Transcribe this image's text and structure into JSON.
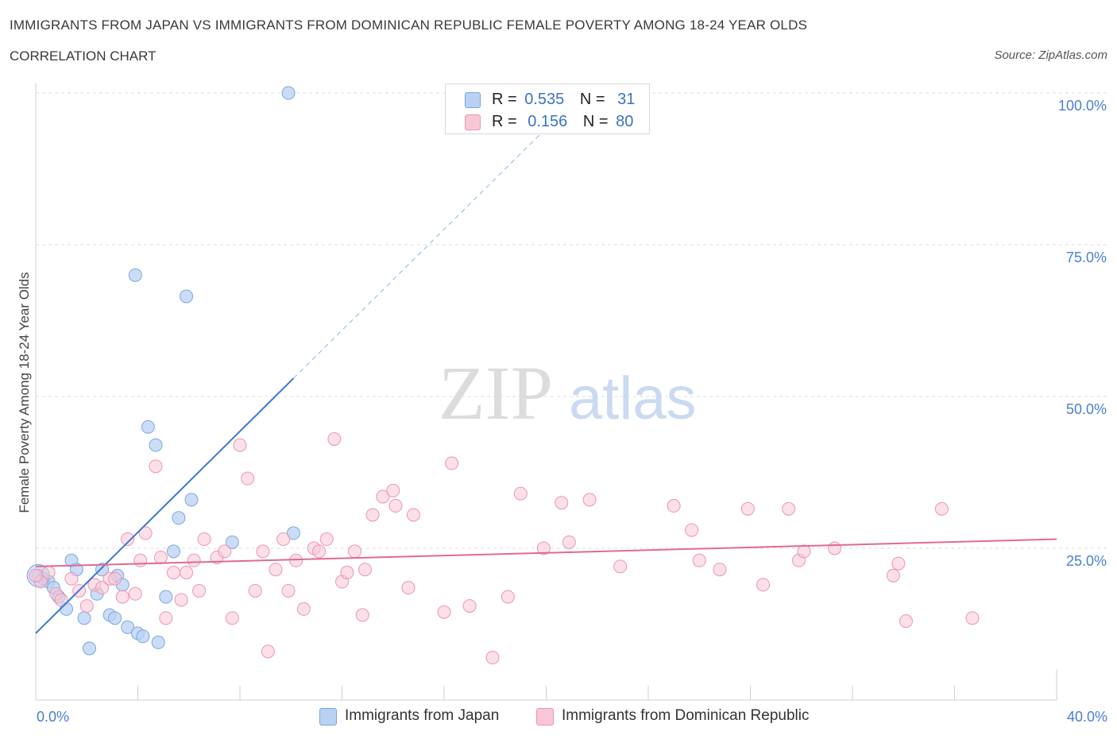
{
  "header": {
    "title": "IMMIGRANTS FROM JAPAN VS IMMIGRANTS FROM DOMINICAN REPUBLIC FEMALE POVERTY AMONG 18-24 YEAR OLDS",
    "subtitle": "CORRELATION CHART",
    "source": "Source: ZipAtlas.com"
  },
  "legend": {
    "japan": {
      "r_label": "R =",
      "r_value": "0.535",
      "n_label": "N =",
      "n_value": "31"
    },
    "dominican": {
      "r_label": "R =",
      "r_value": "0.156",
      "n_label": "N =",
      "n_value": "80"
    }
  },
  "watermark": {
    "part1": "ZIP",
    "part2": "atlas"
  },
  "colors": {
    "japan_fill": "#b9d2f3",
    "japan_stroke": "#7aa6e0",
    "japan_line": "#3a78cf",
    "dominican_fill": "#f8c7d6",
    "dominican_stroke": "#ee93b2",
    "dominican_line": "#e06a93",
    "tick_text": "#4a7fd0",
    "grid": "#dedede"
  },
  "chart_data": {
    "type": "scatter",
    "title": "IMMIGRANTS FROM JAPAN VS IMMIGRANTS FROM DOMINICAN REPUBLIC FEMALE POVERTY AMONG 18-24 YEAR OLDS",
    "xlabel": "",
    "ylabel": "Female Poverty Among 18-24 Year Olds",
    "xlim": [
      0,
      40
    ],
    "ylim": [
      0,
      100
    ],
    "x_tick_labels": [
      "0.0%",
      "40.0%"
    ],
    "y_tick_labels": [
      "100.0%",
      "75.0%",
      "50.0%",
      "25.0%"
    ],
    "y_tick_values": [
      100,
      75,
      50,
      25
    ],
    "grid": true,
    "legend_position": "top-center",
    "series": [
      {
        "name": "Immigrants from Japan",
        "color": "#b9d2f3",
        "trend": {
          "x": [
            0,
            10.1
          ],
          "y": [
            11,
            53
          ],
          "dashed_extension_to": [
            20.2,
            95
          ]
        },
        "points": [
          [
            0.1,
            20.5
          ],
          [
            0.3,
            20
          ],
          [
            0.5,
            19.5
          ],
          [
            0.7,
            18.5
          ],
          [
            0.9,
            17
          ],
          [
            1.2,
            15
          ],
          [
            1.4,
            23
          ],
          [
            1.6,
            21.5
          ],
          [
            1.9,
            13.5
          ],
          [
            2.1,
            8.5
          ],
          [
            2.4,
            17.5
          ],
          [
            2.6,
            21.5
          ],
          [
            2.9,
            14
          ],
          [
            3.1,
            13.5
          ],
          [
            3.2,
            20.5
          ],
          [
            3.4,
            19
          ],
          [
            3.6,
            12
          ],
          [
            3.9,
            70
          ],
          [
            4.0,
            11
          ],
          [
            4.2,
            10.5
          ],
          [
            4.4,
            45
          ],
          [
            4.7,
            42
          ],
          [
            4.8,
            9.5
          ],
          [
            5.1,
            17
          ],
          [
            5.4,
            24.5
          ],
          [
            5.6,
            30
          ],
          [
            5.9,
            66.5
          ],
          [
            6.1,
            33
          ],
          [
            7.7,
            26
          ],
          [
            10.1,
            27.5
          ],
          [
            9.9,
            100
          ]
        ]
      },
      {
        "name": "Immigrants from Dominican Republic",
        "color": "#f8c7d6",
        "trend": {
          "x": [
            0,
            40
          ],
          "y": [
            22,
            26.5
          ]
        },
        "points": [
          [
            0.2,
            19.5
          ],
          [
            0.5,
            21
          ],
          [
            0.8,
            17.5
          ],
          [
            1.0,
            16.5
          ],
          [
            1.4,
            20
          ],
          [
            1.7,
            18
          ],
          [
            2.0,
            15.5
          ],
          [
            2.3,
            19
          ],
          [
            2.6,
            18.5
          ],
          [
            2.9,
            20
          ],
          [
            3.1,
            20
          ],
          [
            3.4,
            17
          ],
          [
            3.6,
            26.5
          ],
          [
            3.9,
            17.5
          ],
          [
            4.1,
            23
          ],
          [
            4.3,
            27.5
          ],
          [
            4.7,
            38.5
          ],
          [
            4.9,
            23.5
          ],
          [
            5.1,
            13.5
          ],
          [
            5.4,
            21
          ],
          [
            5.7,
            16.5
          ],
          [
            5.9,
            21
          ],
          [
            6.2,
            23
          ],
          [
            6.4,
            18
          ],
          [
            6.6,
            26.5
          ],
          [
            7.1,
            23.5
          ],
          [
            7.4,
            24.5
          ],
          [
            7.7,
            13.5
          ],
          [
            8.0,
            42
          ],
          [
            8.3,
            36.5
          ],
          [
            8.6,
            18
          ],
          [
            8.9,
            24.5
          ],
          [
            9.1,
            8
          ],
          [
            9.4,
            21.5
          ],
          [
            9.7,
            26.5
          ],
          [
            9.9,
            18
          ],
          [
            10.2,
            23
          ],
          [
            10.5,
            15
          ],
          [
            10.9,
            25
          ],
          [
            11.1,
            24.5
          ],
          [
            11.4,
            26.5
          ],
          [
            11.7,
            43
          ],
          [
            12.0,
            19.5
          ],
          [
            12.2,
            21
          ],
          [
            12.5,
            24.5
          ],
          [
            12.8,
            14
          ],
          [
            12.9,
            21.5
          ],
          [
            13.2,
            30.5
          ],
          [
            13.6,
            33.5
          ],
          [
            14.0,
            34.5
          ],
          [
            14.1,
            32
          ],
          [
            14.6,
            18.5
          ],
          [
            14.8,
            30.5
          ],
          [
            16.0,
            14.5
          ],
          [
            16.3,
            39
          ],
          [
            17.0,
            15.5
          ],
          [
            17.9,
            7
          ],
          [
            18.5,
            17
          ],
          [
            19.0,
            34
          ],
          [
            19.9,
            25
          ],
          [
            20.6,
            32.5
          ],
          [
            20.9,
            26
          ],
          [
            21.7,
            33
          ],
          [
            22.9,
            22
          ],
          [
            25.0,
            32
          ],
          [
            25.7,
            28
          ],
          [
            26.0,
            23
          ],
          [
            26.8,
            21.5
          ],
          [
            27.9,
            31.5
          ],
          [
            28.5,
            19
          ],
          [
            29.5,
            31.5
          ],
          [
            29.9,
            23
          ],
          [
            30.1,
            24.5
          ],
          [
            31.3,
            25
          ],
          [
            33.6,
            20.5
          ],
          [
            33.8,
            22.5
          ],
          [
            34.1,
            13
          ],
          [
            35.5,
            31.5
          ],
          [
            36.7,
            13.5
          ],
          [
            0.0,
            20.5
          ]
        ]
      }
    ]
  },
  "bottom_legend": {
    "japan_label": "Immigrants from Japan",
    "dominican_label": "Immigrants from Dominican Republic"
  }
}
